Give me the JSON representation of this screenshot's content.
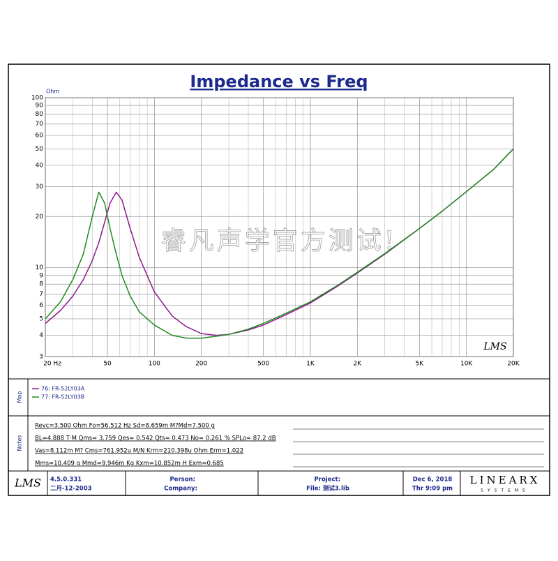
{
  "chart_data": {
    "type": "line",
    "title": "Impedance vs Freq",
    "ylabel": "Ohm",
    "xscale": "log",
    "yscale": "log",
    "grid": true,
    "x": [
      20,
      25,
      30,
      35,
      40,
      44,
      48,
      52,
      57,
      62,
      70,
      80,
      100,
      130,
      160,
      200,
      250,
      300,
      400,
      500,
      700,
      1000,
      1500,
      2000,
      3000,
      5000,
      7000,
      10000,
      15000,
      20000
    ],
    "series": [
      {
        "name": "76: FR-52LY03A",
        "color": "#8b1a8b",
        "values": [
          4.7,
          5.6,
          6.8,
          8.5,
          11,
          14,
          18.5,
          24,
          27.8,
          25,
          17,
          11.5,
          7.2,
          5.2,
          4.5,
          4.1,
          4.0,
          4.05,
          4.3,
          4.6,
          5.3,
          6.2,
          7.8,
          9.3,
          12,
          17,
          21.5,
          28,
          38,
          50
        ]
      },
      {
        "name": "77: FR-52LY03B",
        "color": "#1f8a1f",
        "values": [
          5.0,
          6.3,
          8.5,
          12,
          20,
          27.8,
          24,
          17,
          12,
          9,
          6.8,
          5.5,
          4.6,
          4.0,
          3.85,
          3.85,
          3.95,
          4.05,
          4.35,
          4.7,
          5.4,
          6.3,
          7.9,
          9.4,
          12.1,
          17,
          21.5,
          28,
          38,
          50
        ]
      }
    ],
    "xlim": [
      20,
      20000
    ],
    "ylim": [
      3,
      100
    ],
    "xticks": [
      {
        "value": 20,
        "label": "20 Hz"
      },
      50,
      100,
      200,
      500,
      {
        "value": 1000,
        "label": "1K"
      },
      {
        "value": 2000,
        "label": "2K"
      },
      {
        "value": 5000,
        "label": "5K"
      },
      {
        "value": 10000,
        "label": "10K"
      },
      {
        "value": 20000,
        "label": "20K"
      }
    ],
    "yticks": [
      3,
      4,
      5,
      6,
      7,
      8,
      9,
      10,
      20,
      30,
      40,
      50,
      60,
      70,
      80,
      90,
      100
    ],
    "watermark": "睿凡声学官方测试!",
    "logo": "LMS"
  },
  "panels": {
    "map": "Map",
    "notes": "Notes"
  },
  "notes": [
    "Revc=3.500 Ohm  Fo=56.512 Hz  Sd=8.659m M?Md=7.500 g",
    "BL=4.888 T·M  Qms= 3.759  Qes= 0.542  Qts= 0.473  No= 0.261 %  SPLo= 87.2 dB",
    "Vas=8.112m M?  Cms=761.952u M/N  Krm=210.398u Ohm  Erm=1.022",
    "Mms=10.409 g  Mmd=9.946m Kg  Kxm=10.852m H  Exm=0.685"
  ],
  "footer": {
    "logo": "LMS",
    "version": "4.5.0.331",
    "version_date": "二月-12-2003",
    "person": "Person:",
    "company": "Company:",
    "project": "Project:",
    "file": "File: 测试3.lib",
    "date": "Dec 6, 2018",
    "time": "Thr  9:09 pm",
    "brand": "LINEARX",
    "brand_sub": "SYSTEMS"
  }
}
